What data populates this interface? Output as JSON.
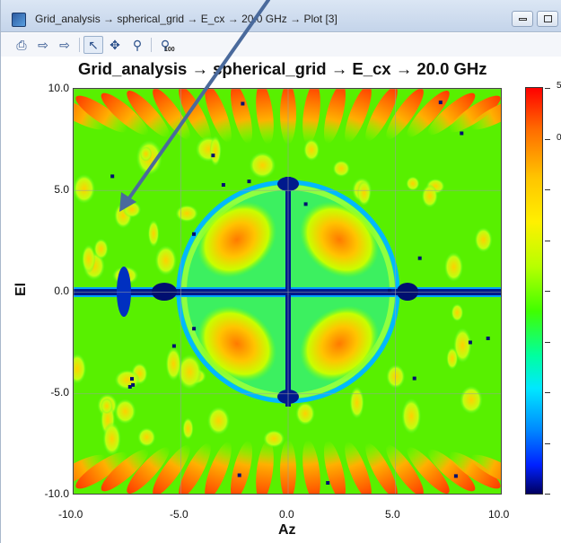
{
  "window": {
    "title": "Grid_analysis → spherical_grid → E_cx → 20.0 GHz → Plot [3]"
  },
  "toolbar": {
    "buttons": [
      {
        "name": "print-icon",
        "glyph": "⎙"
      },
      {
        "name": "export-icon",
        "glyph": "⇨"
      },
      {
        "name": "export-alt-icon",
        "glyph": "⇨"
      },
      {
        "name": "pointer-icon",
        "glyph": "↖"
      },
      {
        "name": "pan-icon",
        "glyph": "✥"
      },
      {
        "name": "zoom-icon",
        "glyph": "⚲"
      },
      {
        "name": "zoom-100-icon",
        "glyph": "⚲"
      }
    ],
    "zoom_sub": "100"
  },
  "chart_data": {
    "type": "heatmap",
    "title": "Grid_analysis → spherical_grid → E_cx → 20.0 GHz",
    "xlabel": "Az",
    "ylabel": "El",
    "xlim": [
      -10.0,
      10.0
    ],
    "ylim": [
      -10.0,
      10.0
    ],
    "xticks": [
      "-10.0",
      "-5.0",
      "0.0",
      "5.0",
      "10.0"
    ],
    "yticks": [
      "10.0",
      "5.0",
      "0.0",
      "-5.0",
      "-10.0"
    ],
    "grid": true,
    "colormap": [
      "#000060",
      "#0020ff",
      "#008cff",
      "#00e8ff",
      "#00ffa0",
      "#40ff00",
      "#b8ff00",
      "#fff000",
      "#ffc400",
      "#ff6a00",
      "#ff0000"
    ],
    "colorbar_labels": [
      "5",
      "0"
    ]
  },
  "annotation_color": "#4a6a9c"
}
